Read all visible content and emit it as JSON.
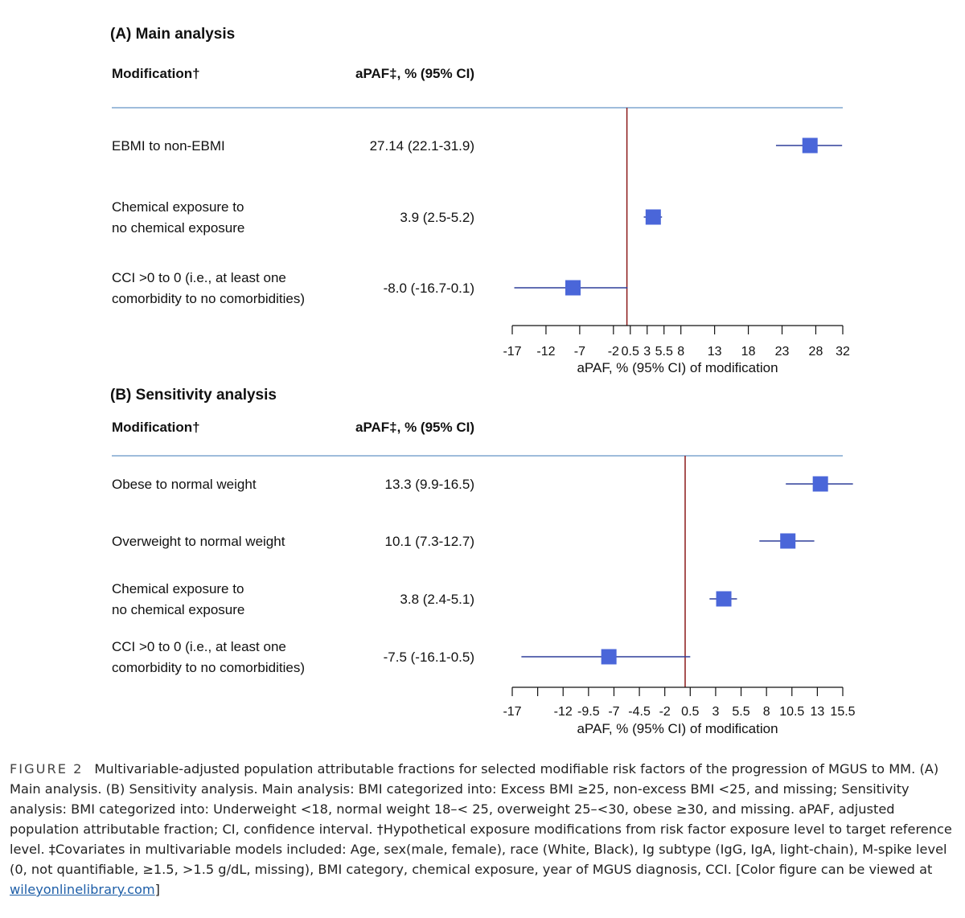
{
  "chart_data": [
    {
      "type": "forest",
      "panel_title": "(A) Main analysis",
      "col_label_header": "Modification†",
      "col_value_header": "aPAF‡, % (95% CI)",
      "xlabel": "aPAF, % (95% CI) of modification",
      "xlim": [
        -17,
        32
      ],
      "ticks": [
        -17,
        -12,
        -7,
        -2,
        0.5,
        3,
        5.5,
        8,
        13,
        18,
        23,
        28,
        32
      ],
      "tick_labels": [
        "-17",
        "-12",
        "-7",
        "-2",
        "0.5",
        "3",
        "5.5",
        "8",
        "13",
        "18",
        "23",
        "28",
        "32"
      ],
      "reference_line": 0,
      "rows": [
        {
          "label": [
            "EBMI to non-EBMI"
          ],
          "value_text": "27.14 (22.1-31.9)",
          "estimate": 27.14,
          "ci": [
            22.1,
            31.9
          ]
        },
        {
          "label": [
            "Chemical exposure to",
            "no chemical exposure"
          ],
          "value_text": "3.9 (2.5-5.2)",
          "estimate": 3.9,
          "ci": [
            2.5,
            5.2
          ]
        },
        {
          "label": [
            "CCI >0 to 0 (i.e., at least one",
            "comorbidity to no comorbidities)"
          ],
          "value_text": "-8.0 (-16.7-0.1)",
          "estimate": -8.0,
          "ci": [
            -16.7,
            0.1
          ]
        }
      ]
    },
    {
      "type": "forest",
      "panel_title": "(B) Sensitivity analysis",
      "col_label_header": "Modification†",
      "col_value_header": "aPAF‡, % (95% CI)",
      "xlabel": "aPAF, % (95% CI) of modification",
      "xlim": [
        -17,
        15.5
      ],
      "ticks": [
        -17,
        -14.5,
        -12,
        -9.5,
        -7,
        -4.5,
        -2,
        0.5,
        3,
        5.5,
        8,
        10.5,
        13,
        15.5
      ],
      "tick_labels": [
        "-17",
        "",
        "-12",
        "-9.5",
        "-7",
        "-4.5",
        "-2",
        "0.5",
        "3",
        "5.5",
        "8",
        "10.5",
        "13",
        "15.5"
      ],
      "reference_line": 0,
      "rows": [
        {
          "label": [
            "Obese to normal weight"
          ],
          "value_text": "13.3 (9.9-16.5)",
          "estimate": 13.3,
          "ci": [
            9.9,
            16.5
          ]
        },
        {
          "label": [
            "Overweight to normal weight"
          ],
          "value_text": "10.1 (7.3-12.7)",
          "estimate": 10.1,
          "ci": [
            7.3,
            12.7
          ]
        },
        {
          "label": [
            "Chemical exposure to",
            "no chemical exposure"
          ],
          "value_text": "3.8 (2.4-5.1)",
          "estimate": 3.8,
          "ci": [
            2.4,
            5.1
          ]
        },
        {
          "label": [
            "CCI >0 to 0 (i.e., at least one",
            "comorbidity to no comorbidities)"
          ],
          "value_text": "-7.5 (-16.1-0.5)",
          "estimate": -7.5,
          "ci": [
            -16.1,
            0.5
          ]
        }
      ]
    }
  ],
  "colors": {
    "marker": "#4a66d9",
    "ci_line": "#2f3f9a",
    "reference": "#8b1a1a",
    "header_rule": "#7ea6cf"
  },
  "caption": {
    "label": "FIGURE 2",
    "text": "Multivariable-adjusted population attributable fractions for selected modifiable risk factors of the progression of MGUS to MM. (A) Main analysis. (B) Sensitivity analysis. Main analysis: BMI categorized into: Excess BMI ≥25, non-excess BMI <25, and missing; Sensitivity analysis: BMI categorized into: Underweight <18, normal weight 18–< 25, overweight 25–<30, obese ≥30, and missing. aPAF, adjusted population attributable fraction; CI, confidence interval. †Hypothetical exposure modifications from risk factor exposure level to target reference level. ‡Covariates in multivariable models included: Age, sex(male, female), race (White, Black), Ig subtype (IgG, IgA, light-chain), M-spike level (0, not quantifiable, ≥1.5, >1.5 g/dL, missing), BMI category, chemical exposure, year of MGUS diagnosis, CCI. [Color figure can be viewed at",
    "link": "wileyonlinelibrary.com",
    "end": "]"
  }
}
